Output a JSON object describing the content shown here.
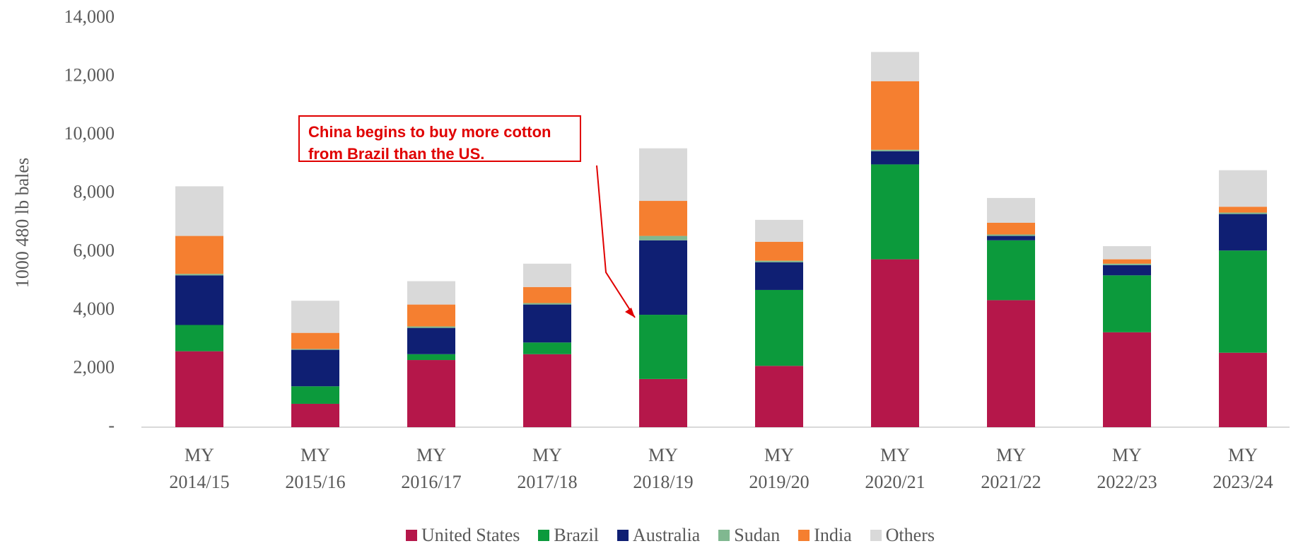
{
  "chart_data": {
    "type": "stacked_bar",
    "y_label": "1000 480 lb bales",
    "annotation": "China begins to buy more cotton from Brazil than the US.",
    "categories": [
      "MY 2014/15",
      "MY 2015/16",
      "MY 2016/17",
      "MY 2017/18",
      "MY 2018/19",
      "MY 2019/20",
      "MY 2020/21",
      "MY 2021/22",
      "MY 2022/23",
      "MY 2023/24"
    ],
    "series": [
      {
        "name": "United States",
        "color": "#b5174a",
        "values": [
          2600,
          800,
          2300,
          2500,
          1650,
          2100,
          5750,
          4350,
          3250,
          2550
        ]
      },
      {
        "name": "Brazil",
        "color": "#0c9a3c",
        "values": [
          900,
          600,
          200,
          400,
          2200,
          2600,
          3250,
          2050,
          1950,
          3500
        ]
      },
      {
        "name": "Australia",
        "color": "#0f1f73",
        "values": [
          1700,
          1250,
          900,
          1300,
          2550,
          950,
          450,
          150,
          350,
          1250
        ]
      },
      {
        "name": "Sudan",
        "color": "#80b890",
        "values": [
          50,
          30,
          50,
          50,
          150,
          50,
          50,
          50,
          50,
          50
        ]
      },
      {
        "name": "India",
        "color": "#f57f30",
        "values": [
          1300,
          550,
          750,
          550,
          1200,
          650,
          2350,
          400,
          150,
          200
        ]
      },
      {
        "name": "Others",
        "color": "#d9d9d9",
        "values": [
          1700,
          1100,
          800,
          800,
          1800,
          750,
          1000,
          850,
          450,
          1250
        ]
      }
    ],
    "ylim": [
      0,
      14000
    ],
    "yticks": [
      {
        "value": 0,
        "label": "-"
      },
      {
        "value": 2000,
        "label": "2,000"
      },
      {
        "value": 4000,
        "label": "4,000"
      },
      {
        "value": 6000,
        "label": "6,000"
      },
      {
        "value": 8000,
        "label": "8,000"
      },
      {
        "value": 10000,
        "label": "10,000"
      },
      {
        "value": 12000,
        "label": "12,000"
      },
      {
        "value": 14000,
        "label": "14,000"
      }
    ],
    "legend": "bottom"
  }
}
